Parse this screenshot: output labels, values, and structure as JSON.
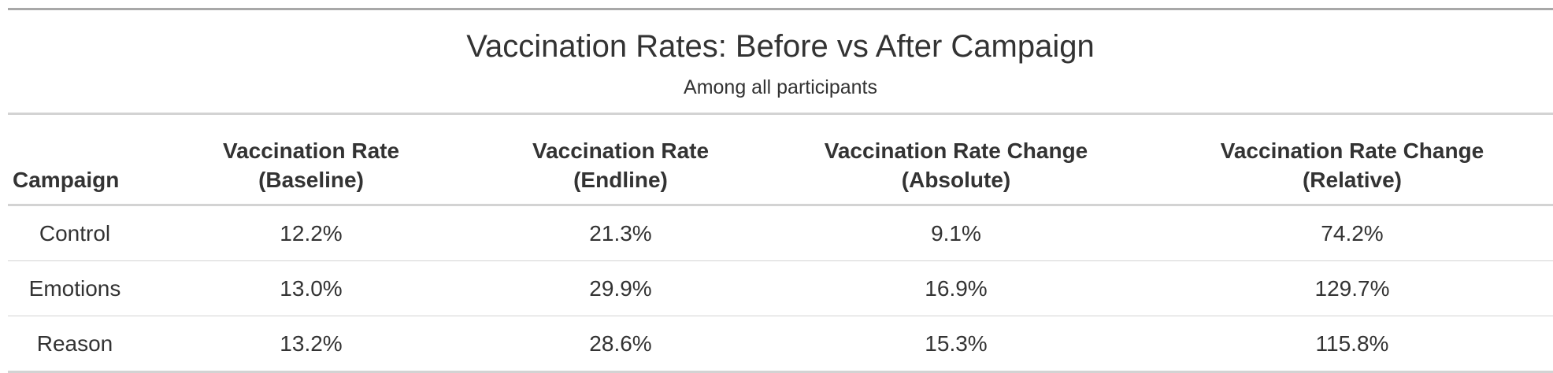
{
  "table": {
    "title": "Vaccination Rates: Before vs After Campaign",
    "subtitle": "Among all participants",
    "columns": [
      {
        "line1": "Campaign",
        "line2": ""
      },
      {
        "line1": "Vaccination Rate",
        "line2": "(Baseline)"
      },
      {
        "line1": "Vaccination Rate",
        "line2": "(Endline)"
      },
      {
        "line1": "Vaccination Rate Change",
        "line2": "(Absolute)"
      },
      {
        "line1": "Vaccination Rate Change",
        "line2": "(Relative)"
      }
    ],
    "rows": [
      [
        "Control",
        "12.2%",
        "21.3%",
        "9.1%",
        "74.2%"
      ],
      [
        "Emotions",
        "13.0%",
        "29.9%",
        "16.9%",
        "129.7%"
      ],
      [
        "Reason",
        "13.2%",
        "28.6%",
        "15.3%",
        "115.8%"
      ]
    ]
  }
}
